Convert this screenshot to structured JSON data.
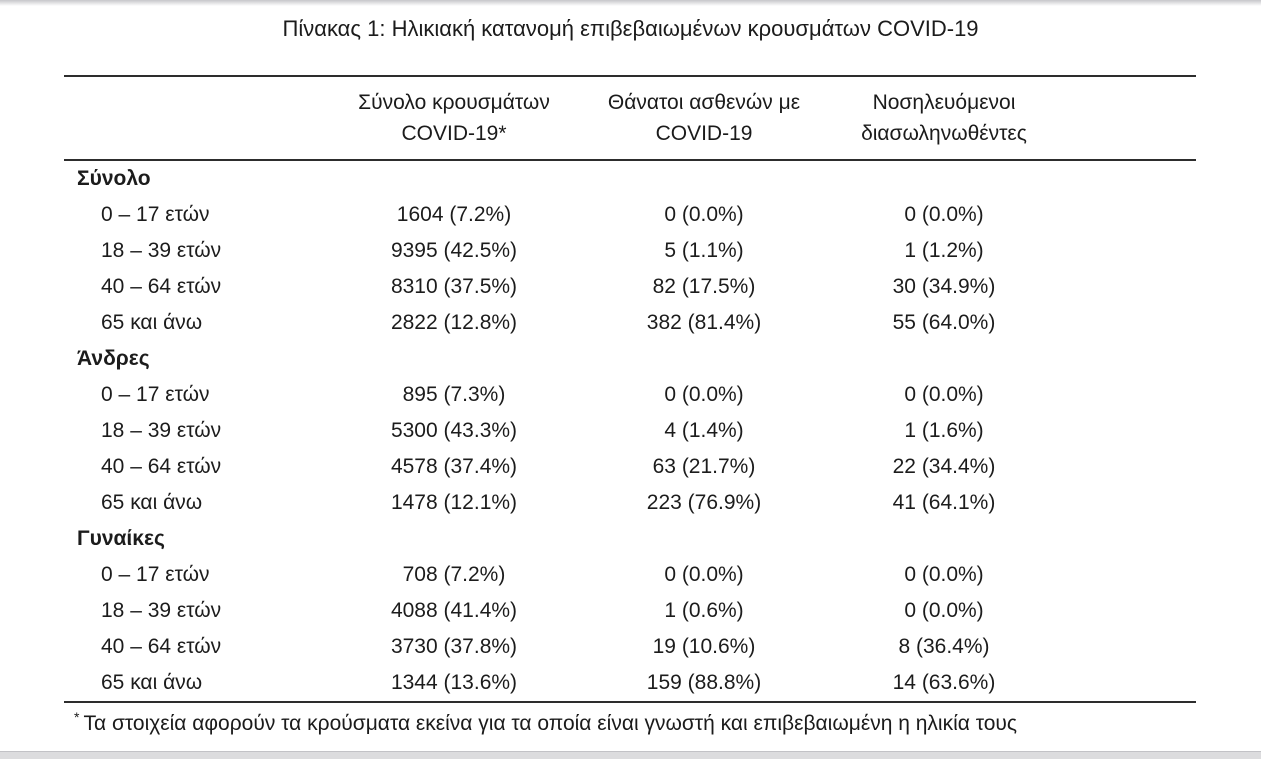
{
  "title": "Πίνακας 1: Ηλικιακή κατανομή επιβεβαιωμένων κρουσμάτων COVID-19",
  "table": {
    "columns": [
      {
        "line1": "Σύνολο κρουσμάτων",
        "line2": "COVID-19*"
      },
      {
        "line1": "Θάνατοι ασθενών με",
        "line2": "COVID-19"
      },
      {
        "line1": "Νοσηλευόμενοι",
        "line2": "διασωληνωθέντες"
      }
    ],
    "sections": [
      {
        "label": "Σύνολο",
        "rows": [
          {
            "age": "0 – 17 ετών",
            "cases": "1604 (7.2%)",
            "deaths": "0 (0.0%)",
            "intubated": "0 (0.0%)"
          },
          {
            "age": "18 – 39 ετών",
            "cases": "9395 (42.5%)",
            "deaths": "5 (1.1%)",
            "intubated": "1 (1.2%)"
          },
          {
            "age": "40 – 64 ετών",
            "cases": "8310 (37.5%)",
            "deaths": "82 (17.5%)",
            "intubated": "30 (34.9%)"
          },
          {
            "age": "65 και άνω",
            "cases": "2822 (12.8%)",
            "deaths": "382 (81.4%)",
            "intubated": "55 (64.0%)"
          }
        ]
      },
      {
        "label": "Άνδρες",
        "rows": [
          {
            "age": "0 – 17 ετών",
            "cases": "895 (7.3%)",
            "deaths": "0 (0.0%)",
            "intubated": "0 (0.0%)"
          },
          {
            "age": "18 – 39 ετών",
            "cases": "5300 (43.3%)",
            "deaths": "4 (1.4%)",
            "intubated": "1 (1.6%)"
          },
          {
            "age": "40 – 64 ετών",
            "cases": "4578 (37.4%)",
            "deaths": "63 (21.7%)",
            "intubated": "22 (34.4%)"
          },
          {
            "age": "65 και άνω",
            "cases": "1478 (12.1%)",
            "deaths": "223 (76.9%)",
            "intubated": "41 (64.1%)"
          }
        ]
      },
      {
        "label": "Γυναίκες",
        "rows": [
          {
            "age": "0 – 17 ετών",
            "cases": "708 (7.2%)",
            "deaths": "0 (0.0%)",
            "intubated": "0 (0.0%)"
          },
          {
            "age": "18 – 39 ετών",
            "cases": "4088 (41.4%)",
            "deaths": "1 (0.6%)",
            "intubated": "0 (0.0%)"
          },
          {
            "age": "40 – 64 ετών",
            "cases": "3730 (37.8%)",
            "deaths": "19 (10.6%)",
            "intubated": "8 (36.4%)"
          },
          {
            "age": "65 και άνω",
            "cases": "1344 (13.6%)",
            "deaths": "159 (88.8%)",
            "intubated": "14 (63.6%)"
          }
        ]
      }
    ]
  },
  "footnote": {
    "marker": "*",
    "text": "Τα στοιχεία αφορούν τα κρούσματα εκείνα για τα οποία είναι γνωστή και επιβεβαιωμένη η ηλικία τους"
  },
  "colors": {
    "text": "#1c1c1c",
    "rule": "#2d2d2d",
    "bottom_bar": "#dcdcde"
  }
}
